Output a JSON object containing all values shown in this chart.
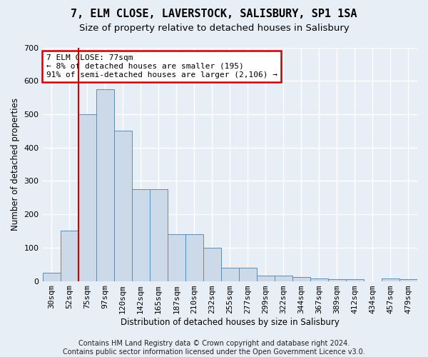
{
  "title": "7, ELM CLOSE, LAVERSTOCK, SALISBURY, SP1 1SA",
  "subtitle": "Size of property relative to detached houses in Salisbury",
  "xlabel": "Distribution of detached houses by size in Salisbury",
  "ylabel": "Number of detached properties",
  "footer": "Contains HM Land Registry data © Crown copyright and database right 2024.\nContains public sector information licensed under the Open Government Licence v3.0.",
  "categories": [
    "30sqm",
    "52sqm",
    "75sqm",
    "97sqm",
    "120sqm",
    "142sqm",
    "165sqm",
    "187sqm",
    "210sqm",
    "232sqm",
    "255sqm",
    "277sqm",
    "299sqm",
    "322sqm",
    "344sqm",
    "367sqm",
    "389sqm",
    "412sqm",
    "434sqm",
    "457sqm",
    "479sqm"
  ],
  "values": [
    25,
    150,
    500,
    575,
    450,
    275,
    275,
    140,
    140,
    100,
    40,
    40,
    17,
    17,
    13,
    8,
    6,
    6,
    0,
    8,
    5
  ],
  "bar_color": "#ccd9e8",
  "bar_edge_color": "#5b8db8",
  "red_line_index": 2,
  "ylim": [
    0,
    700
  ],
  "annotation_text": "7 ELM CLOSE: 77sqm\n← 8% of detached houses are smaller (195)\n91% of semi-detached houses are larger (2,106) →",
  "annotation_box_color": "#ffffff",
  "annotation_box_edge_color": "#cc0000",
  "background_color": "#e8eef6",
  "plot_background_color": "#e8eef6",
  "grid_color": "#ffffff",
  "title_fontsize": 11,
  "subtitle_fontsize": 9.5,
  "axis_label_fontsize": 8.5,
  "tick_fontsize": 8,
  "footer_fontsize": 7
}
